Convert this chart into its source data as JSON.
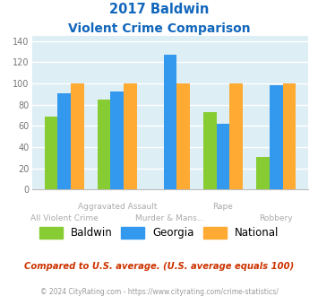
{
  "title_line1": "2017 Baldwin",
  "title_line2": "Violent Crime Comparison",
  "categories": [
    "All Violent Crime",
    "Aggravated Assault",
    "Murder & Mans...",
    "Rape",
    "Robbery"
  ],
  "baldwin": [
    69,
    85,
    0,
    73,
    31
  ],
  "georgia": [
    91,
    92,
    127,
    62,
    98
  ],
  "national": [
    100,
    100,
    100,
    100,
    100
  ],
  "baldwin_color": "#88cc33",
  "georgia_color": "#3399ee",
  "national_color": "#ffaa33",
  "ylim": [
    0,
    145
  ],
  "yticks": [
    0,
    20,
    40,
    60,
    80,
    100,
    120,
    140
  ],
  "bg_color": "#ddeef5",
  "grid_color": "#ffffff",
  "title_color": "#1166bb",
  "footnote_color": "#cc3300",
  "copyright_color": "#999999",
  "label_color": "#aaaaaa",
  "footnote": "Compared to U.S. average. (U.S. average equals 100)",
  "copyright": "© 2024 CityRating.com - https://www.cityrating.com/crime-statistics/",
  "legend_labels": [
    "Baldwin",
    "Georgia",
    "National"
  ]
}
